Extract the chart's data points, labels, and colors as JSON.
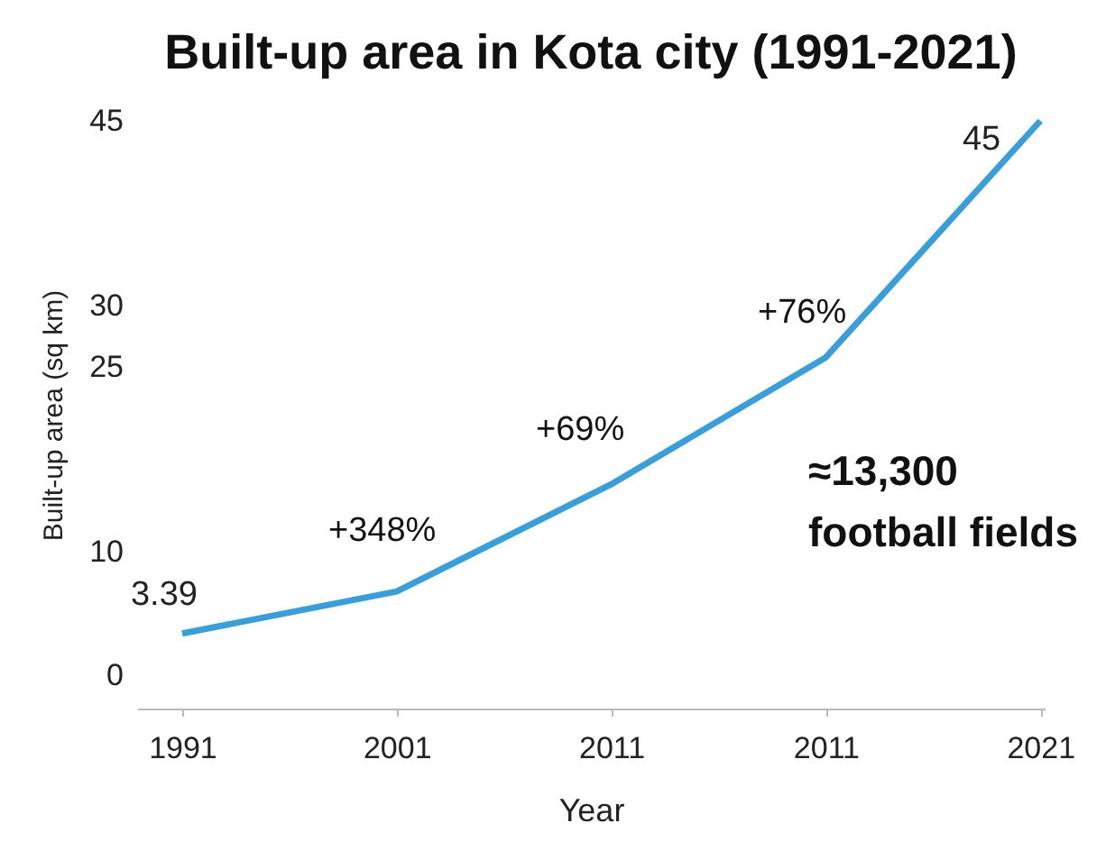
{
  "chart_data": {
    "type": "line",
    "title": "Built-up area in Kota city (1991-2021)",
    "categories": [
      "1991",
      "2001",
      "2011",
      "2011",
      "2021"
    ],
    "series": [
      {
        "color": "#3a9fd8",
        "values": [
          3.39,
          6.8,
          15.5,
          25.8,
          45
        ],
        "value_labels": [
          "3.39",
          null,
          null,
          null,
          "45"
        ]
      }
    ],
    "xlabel": "Year",
    "ylabel": "Built-up area (sq km)",
    "ylim": [
      -2.7,
      45
    ],
    "yticks": [
      0,
      10,
      25,
      30,
      45
    ],
    "annotations": [
      "+348%",
      "+69%",
      "+76%",
      "≈13,300\nfootball fields"
    ],
    "grid": false,
    "marker": "none",
    "line_style": "solid"
  }
}
